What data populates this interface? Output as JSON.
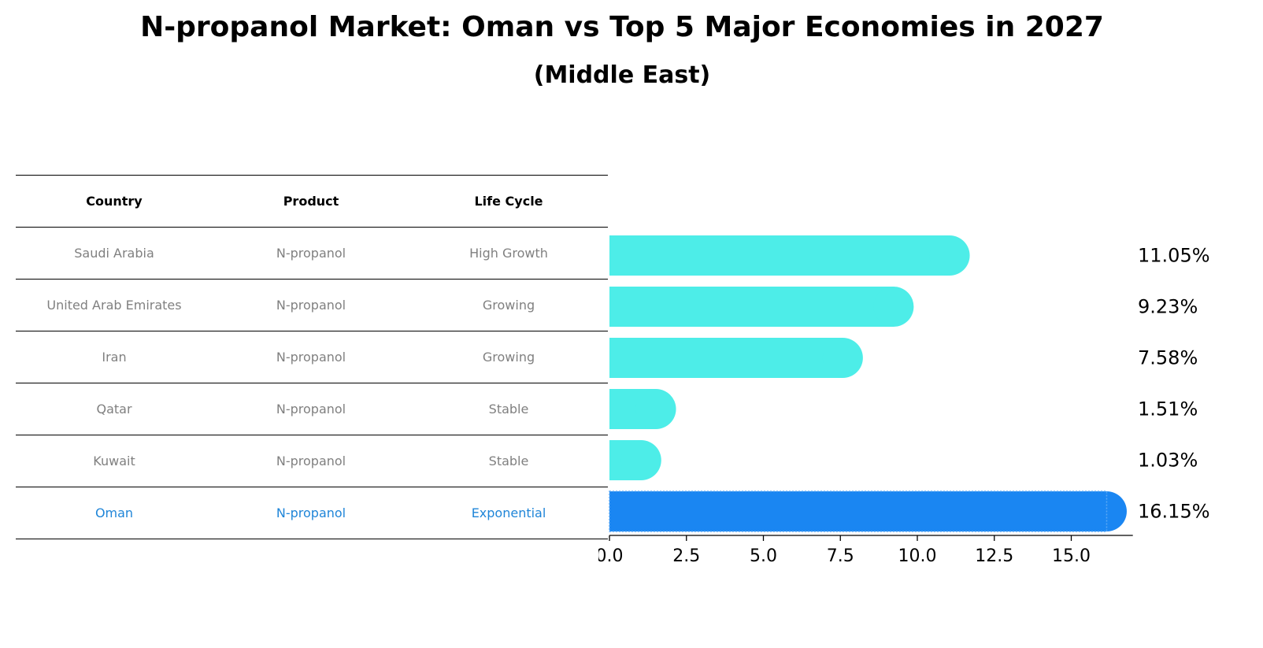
{
  "title": "N-propanol Market: Oman vs Top 5 Major Economies in 2027",
  "subtitle": "(Middle East)",
  "table": {
    "headers": [
      "Country",
      "Product",
      "Life Cycle"
    ],
    "rows": [
      [
        "Saudi Arabia",
        "N-propanol",
        "High Growth"
      ],
      [
        "United Arab Emirates",
        "N-propanol",
        "Growing"
      ],
      [
        "Iran",
        "N-propanol",
        "Growing"
      ],
      [
        "Qatar",
        "N-propanol",
        "Stable"
      ],
      [
        "Kuwait",
        "N-propanol",
        "Stable"
      ],
      [
        "Oman",
        "N-propanol",
        "Exponential"
      ]
    ],
    "highlight_color": "#1f85d8"
  },
  "chart_data": {
    "type": "bar",
    "orientation": "horizontal",
    "categories": [
      "Saudi Arabia",
      "United Arab Emirates",
      "Iran",
      "Qatar",
      "Kuwait",
      "Oman"
    ],
    "values": [
      11.05,
      9.23,
      7.58,
      1.51,
      1.03,
      16.15
    ],
    "value_labels": [
      "11.05%",
      "9.23%",
      "7.58%",
      "1.51%",
      "1.03%",
      "16.15%"
    ],
    "colors": [
      "#4dede8",
      "#4dede8",
      "#4dede8",
      "#4dede8",
      "#4dede8",
      "#1a86f2"
    ],
    "xlim": [
      0,
      17
    ],
    "xticks": [
      "0.0",
      "2.5",
      "5.0",
      "7.5",
      "10.0",
      "12.5",
      "15.0"
    ],
    "xtick_values": [
      0,
      2.5,
      5,
      7.5,
      10,
      12.5,
      15
    ],
    "grid": false
  }
}
